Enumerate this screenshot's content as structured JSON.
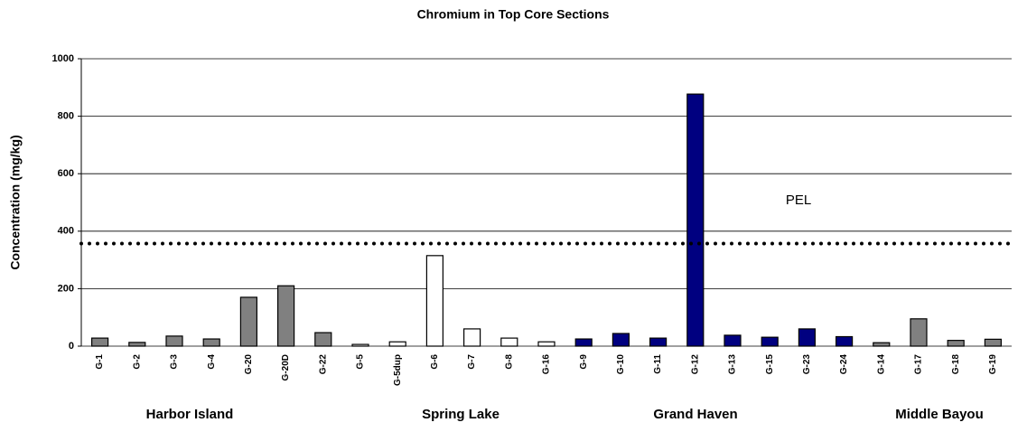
{
  "chart_data": {
    "type": "bar",
    "title": "Chromium in Top Core Sections",
    "y_label": "Concentration (mg/kg)",
    "categories": [
      "G-1",
      "G-2",
      "G-3",
      "G-4",
      "G-20",
      "G-20D",
      "G-22",
      "G-5",
      "G-5dup",
      "G-6",
      "G-7",
      "G-8",
      "G-16",
      "G-9",
      "G-10",
      "G-11",
      "G-12",
      "G-13",
      "G-15",
      "G-23",
      "G-24",
      "G-14",
      "G-17",
      "G-18",
      "G-19"
    ],
    "values": [
      28,
      13,
      35,
      25,
      170,
      210,
      47,
      6,
      15,
      315,
      60,
      28,
      15,
      25,
      44,
      28,
      877,
      38,
      31,
      60,
      33,
      12,
      95,
      20,
      24
    ],
    "colors": [
      "#808080",
      "#808080",
      "#808080",
      "#808080",
      "#808080",
      "#808080",
      "#808080",
      "#ffffff",
      "#ffffff",
      "#ffffff",
      "#ffffff",
      "#ffffff",
      "#ffffff",
      "#000080",
      "#000080",
      "#000080",
      "#000080",
      "#000080",
      "#000080",
      "#000080",
      "#000080",
      "#808080",
      "#808080",
      "#808080",
      "#808080"
    ],
    "groups": [
      "Harbor Island",
      "Spring Lake",
      "Grand Haven",
      "Middle Bayou"
    ],
    "reference_line": {
      "label": "PEL",
      "value": 357
    },
    "ylim": [
      0,
      1000
    ],
    "yticks": [
      0,
      200,
      400,
      600,
      800,
      1000
    ],
    "grid": true
  }
}
